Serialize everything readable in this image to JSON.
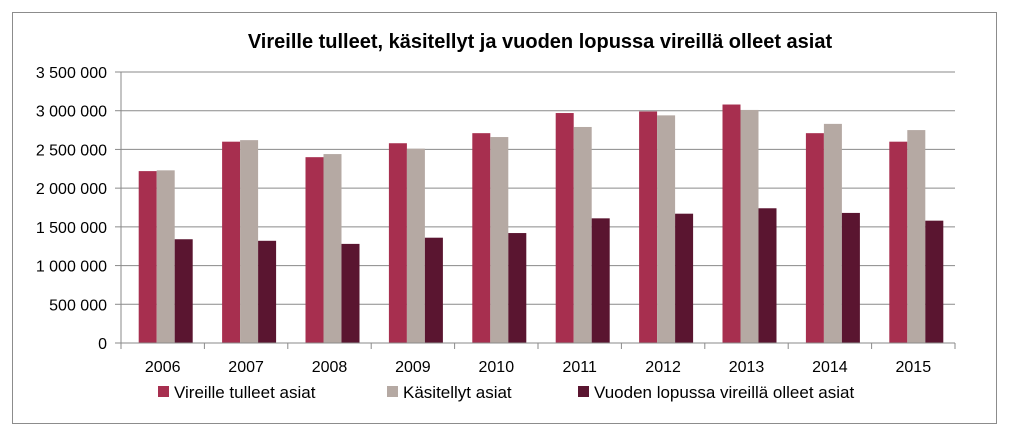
{
  "chart_data": {
    "type": "bar",
    "title": "Vireille tulleet, käsitellyt ja vuoden lopussa vireillä olleet asiat",
    "categories": [
      "2006",
      "2007",
      "2008",
      "2009",
      "2010",
      "2011",
      "2012",
      "2013",
      "2014",
      "2015"
    ],
    "series": [
      {
        "name": "Vireille tulleet asiat",
        "color": "#a72f4f",
        "values": [
          2220000,
          2600000,
          2400000,
          2580000,
          2710000,
          2970000,
          2990000,
          3080000,
          2710000,
          2600000
        ]
      },
      {
        "name": "Käsitellyt asiat",
        "color": "#b5a9a3",
        "values": [
          2230000,
          2620000,
          2440000,
          2510000,
          2660000,
          2790000,
          2940000,
          3010000,
          2830000,
          2750000
        ]
      },
      {
        "name": "Vuoden lopussa vireillä olleet asiat",
        "color": "#5a1530",
        "values": [
          1340000,
          1320000,
          1280000,
          1360000,
          1420000,
          1610000,
          1670000,
          1740000,
          1680000,
          1580000
        ]
      }
    ],
    "yticks": [
      "0",
      "500 000",
      "1 000 000",
      "1 500 000",
      "2 000 000",
      "2 500 000",
      "3 000 000",
      "3 500 000"
    ],
    "ylim": [
      0,
      3500000
    ],
    "grid": true,
    "legend": "bottom"
  }
}
